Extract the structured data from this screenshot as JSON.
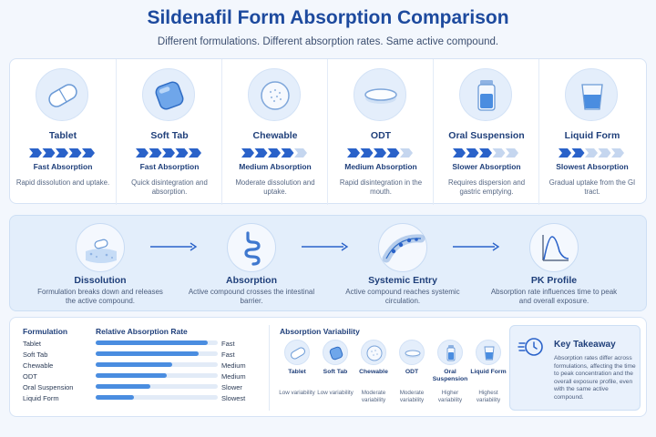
{
  "header": {
    "title": "Sildenafil Form Absorption Comparison",
    "subtitle": "Different formulations. Different absorption rates. Same active compound."
  },
  "forms": [
    {
      "name": "Tablet",
      "rate": "Fast Absorption",
      "desc": "Rapid dissolution and uptake.",
      "icon": "tablet-icon",
      "chevrons": 5
    },
    {
      "name": "Soft Tab",
      "rate": "Fast Absorption",
      "desc": "Quick disintegration and absorption.",
      "icon": "soft-tab-icon",
      "chevrons": 5
    },
    {
      "name": "Chewable",
      "rate": "Medium Absorption",
      "desc": "Moderate dissolution and uptake.",
      "icon": "chewable-icon",
      "chevrons": 4
    },
    {
      "name": "ODT",
      "rate": "Medium Absorption",
      "desc": "Rapid disintegration in the mouth.",
      "icon": "odt-icon",
      "chevrons": 4
    },
    {
      "name": "Oral Suspension",
      "rate": "Slower Absorption",
      "desc": "Requires dispersion and gastric emptying.",
      "icon": "oral-suspension-icon",
      "chevrons": 3
    },
    {
      "name": "Liquid Form",
      "rate": "Slowest Absorption",
      "desc": "Gradual uptake from the GI tract.",
      "icon": "liquid-form-icon",
      "chevrons": 2
    }
  ],
  "process": [
    {
      "name": "Dissolution",
      "desc": "Formulation breaks down and releases the active compound.",
      "icon": "dissolution-icon"
    },
    {
      "name": "Absorption",
      "desc": "Active compound crosses the intestinal barrier.",
      "icon": "intestine-icon"
    },
    {
      "name": "Systemic Entry",
      "desc": "Active compound reaches systemic circulation.",
      "icon": "blood-vessel-icon"
    },
    {
      "name": "PK Profile",
      "desc": "Absorption rate influences time to peak and overall exposure.",
      "icon": "pk-curve-icon"
    }
  ],
  "rate_table": {
    "formulation_header": "Formulation",
    "rate_header": "Relative Absorption Rate",
    "rows": [
      {
        "label": "Tablet",
        "value": "Fast",
        "fraction": 0.92
      },
      {
        "label": "Soft Tab",
        "value": "Fast",
        "fraction": 0.84
      },
      {
        "label": "Chewable",
        "value": "Medium",
        "fraction": 0.63
      },
      {
        "label": "ODT",
        "value": "Medium",
        "fraction": 0.58
      },
      {
        "label": "Oral Suspension",
        "value": "Slower",
        "fraction": 0.45
      },
      {
        "label": "Liquid Form",
        "value": "Slowest",
        "fraction": 0.31
      }
    ]
  },
  "variability": {
    "header": "Absorption Variability",
    "items": [
      {
        "name": "Tablet",
        "level": "Low variability",
        "icon": "tablet-icon"
      },
      {
        "name": "Soft Tab",
        "level": "Low variability",
        "icon": "soft-tab-icon"
      },
      {
        "name": "Chewable",
        "level": "Moderate variability",
        "icon": "chewable-icon"
      },
      {
        "name": "ODT",
        "level": "Moderate variability",
        "icon": "odt-icon"
      },
      {
        "name": "Oral Suspension",
        "level": "Higher variability",
        "icon": "oral-suspension-icon"
      },
      {
        "name": "Liquid Form",
        "level": "Highest variability",
        "icon": "liquid-form-icon"
      }
    ]
  },
  "takeaway": {
    "title": "Key Takeaway",
    "text": "Absorption rates differ across formulations, affecting the time to peak concentration and the overall exposure profile, even with the same active compound.",
    "icon": "fast-clock-icon"
  },
  "colors": {
    "accent": "#1d4a9e",
    "bar": "#4a8de0",
    "chevron_on": "#2a62c9",
    "chevron_off": "#c5d6ef"
  }
}
